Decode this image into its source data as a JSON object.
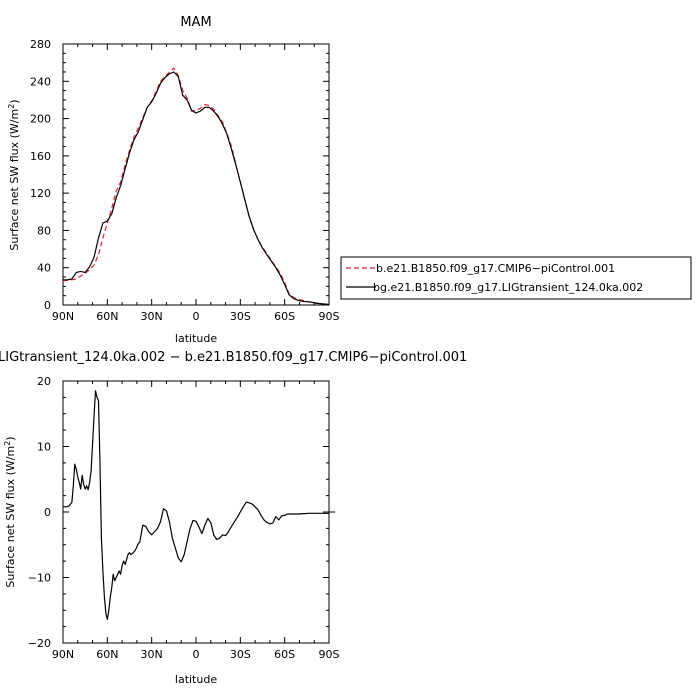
{
  "figure": {
    "top_title": "MAM",
    "bottom_title": "LIGtransient_124.0ka.002 − b.e21.B1850.f09_g17.CMIP6−piControl.001"
  },
  "colors": {
    "control": "#e8212b",
    "transient": "#000000",
    "axis": "#000000"
  },
  "chart_data": [
    {
      "type": "line",
      "title": "MAM",
      "xlabel": "latitude",
      "ylabel": "Surface net SW flux (W/m²)",
      "xlim": [
        90,
        -90
      ],
      "ylim": [
        0,
        280
      ],
      "xticks": [
        90,
        60,
        30,
        0,
        -30,
        -60,
        -90
      ],
      "xticklabels": [
        "90N",
        "60N",
        "30N",
        "0",
        "30S",
        "60S",
        "90S"
      ],
      "yticks": [
        0,
        40,
        80,
        120,
        160,
        200,
        240,
        280
      ],
      "yticklabels": [
        "0",
        "40",
        "80",
        "120",
        "160",
        "200",
        "240",
        "280"
      ],
      "legend": [
        "b.e21.B1850.f09_g17.CMIP6−piControl.001",
        "bg.e21.B1850.f09_g17.LIGtransient_124.0ka.002"
      ],
      "legend_position": "right",
      "series": [
        {
          "name": "b.e21.B1850.f09_g17.CMIP6−piControl.001",
          "style": "dashed",
          "color": "#e8212b",
          "x": [
            90,
            87,
            84,
            81,
            78,
            75,
            72,
            69,
            66,
            63,
            60,
            57,
            54,
            51,
            48,
            45,
            42,
            39,
            36,
            33,
            30,
            27,
            24,
            21,
            18,
            15,
            12,
            9,
            6,
            3,
            0,
            -3,
            -6,
            -9,
            -12,
            -15,
            -18,
            -21,
            -24,
            -27,
            -30,
            -33,
            -36,
            -39,
            -42,
            -45,
            -48,
            -51,
            -54,
            -57,
            -60,
            -63,
            -66,
            -69,
            -72,
            -75,
            -78,
            -81,
            -84,
            -87,
            -90
          ],
          "y": [
            26,
            26.5,
            27,
            28,
            31,
            34,
            38,
            43,
            54,
            72,
            88,
            104,
            122,
            132,
            150,
            166,
            180,
            190,
            201,
            212,
            219,
            229,
            240,
            245,
            250,
            254,
            246,
            230,
            222,
            208,
            209,
            211,
            215,
            214,
            210,
            203,
            196,
            184,
            170,
            151,
            132,
            113,
            94,
            81,
            70,
            62,
            55,
            48,
            41,
            34,
            24,
            12,
            8,
            6,
            5,
            4,
            3,
            2,
            1.5,
            1,
            0.5
          ]
        },
        {
          "name": "bg.e21.B1850.f09_g17.LIGtransient_124.0ka.002",
          "style": "solid",
          "color": "#000000",
          "x": [
            90,
            87,
            84,
            81,
            78,
            75,
            72,
            69,
            66,
            63,
            60,
            57,
            54,
            51,
            48,
            45,
            42,
            39,
            36,
            33,
            30,
            27,
            24,
            21,
            18,
            15,
            12,
            9,
            6,
            3,
            0,
            -3,
            -6,
            -9,
            -12,
            -15,
            -18,
            -21,
            -24,
            -27,
            -30,
            -33,
            -36,
            -39,
            -42,
            -45,
            -48,
            -51,
            -54,
            -57,
            -60,
            -63,
            -66,
            -69,
            -72,
            -75,
            -78,
            -81,
            -84,
            -87,
            -90
          ],
          "y": [
            27,
            27,
            28,
            35,
            36,
            35,
            41,
            51,
            72,
            88,
            90,
            98,
            115,
            128,
            146,
            163,
            177,
            186,
            199,
            212,
            218,
            227,
            238,
            244,
            248,
            250,
            245,
            225,
            220,
            209,
            206,
            208,
            212,
            212,
            208,
            202,
            194,
            183,
            167,
            150,
            132,
            113,
            95,
            81,
            70,
            61,
            54,
            47,
            40,
            32,
            22,
            11,
            7,
            5,
            4,
            3.5,
            3,
            2,
            1.5,
            1,
            0.5
          ]
        }
      ]
    },
    {
      "type": "line",
      "title": "LIGtransient_124.0ka.002 − b.e21.B1850.f09_g17.CMIP6−piControl.001",
      "xlabel": "latitude",
      "ylabel": "Surface net SW flux (W/m²)",
      "xlim": [
        90,
        -90
      ],
      "ylim": [
        -20,
        20
      ],
      "xticks": [
        90,
        60,
        30,
        0,
        -30,
        -60,
        -90
      ],
      "xticklabels": [
        "90N",
        "60N",
        "30N",
        "0",
        "30S",
        "60S",
        "90S"
      ],
      "yticks": [
        -20,
        -10,
        0,
        10,
        20
      ],
      "yticklabels": [
        "−20",
        "−10",
        "0",
        "10",
        "20"
      ],
      "series": [
        {
          "style": "solid",
          "color": "#000000",
          "x": [
            90,
            88,
            86,
            84,
            83,
            82,
            81,
            80,
            79,
            78,
            77,
            76,
            75,
            74,
            73,
            72,
            71,
            70,
            69,
            68,
            67,
            66,
            65,
            64,
            63,
            62,
            61,
            60,
            59,
            58,
            57,
            56,
            55,
            54,
            53,
            52,
            51,
            50,
            49,
            48,
            47,
            46,
            45,
            44,
            43,
            42,
            41,
            40,
            39,
            38,
            36,
            34,
            32,
            30,
            28,
            26,
            24,
            22,
            20,
            18,
            16,
            14,
            12,
            10,
            8,
            6,
            4,
            2,
            0,
            -2,
            -4,
            -6,
            -8,
            -10,
            -12,
            -14,
            -16,
            -18,
            -20,
            -22,
            -24,
            -26,
            -28,
            -30,
            -32,
            -34,
            -36,
            -38,
            -40,
            -42,
            -44,
            -46,
            -48,
            -50,
            -52,
            -54,
            -56,
            -58,
            -60,
            -62,
            -64,
            -66,
            -68,
            -70,
            -72,
            -74,
            -76,
            -78,
            -80,
            -82,
            -84,
            -86,
            -88,
            -90
          ],
          "y": [
            0.8,
            0.8,
            0.9,
            1.5,
            4,
            7.3,
            6.5,
            5.3,
            4.5,
            3.5,
            5.6,
            4.2,
            3.5,
            4,
            3.4,
            4.5,
            6.3,
            10.5,
            14.5,
            18.5,
            17.5,
            17,
            8,
            -4,
            -9,
            -13,
            -15.5,
            -16.4,
            -15,
            -13,
            -11.5,
            -9.5,
            -10.5,
            -10,
            -9.5,
            -9,
            -9.5,
            -8.2,
            -7.5,
            -8,
            -7.3,
            -6.5,
            -6.2,
            -6.5,
            -6.3,
            -6.1,
            -5.8,
            -5.3,
            -4.8,
            -4.6,
            -2.0,
            -2.2,
            -3.0,
            -3.5,
            -3.0,
            -2.5,
            -1.5,
            0.5,
            0.2,
            -1.5,
            -4,
            -5.5,
            -7,
            -7.6,
            -6.5,
            -4.5,
            -2.5,
            -1.3,
            -1.4,
            -2.3,
            -3.3,
            -2.0,
            -1.0,
            -1.6,
            -3.5,
            -4.2,
            -4.0,
            -3.5,
            -3.6,
            -3.0,
            -2.2,
            -1.5,
            -0.8,
            0,
            0.8,
            1.5,
            1.4,
            1.2,
            0.8,
            0.3,
            -0.5,
            -1.2,
            -1.6,
            -1.8,
            -1.7,
            -0.7,
            -1.2,
            -0.6,
            -0.5,
            -0.3,
            -0.3,
            -0.3,
            -0.3,
            -0.3,
            -0.25,
            -0.25,
            -0.2,
            -0.2,
            -0.2,
            -0.2,
            -0.2,
            -0.2,
            -0.2,
            -0.2
          ]
        }
      ]
    }
  ]
}
